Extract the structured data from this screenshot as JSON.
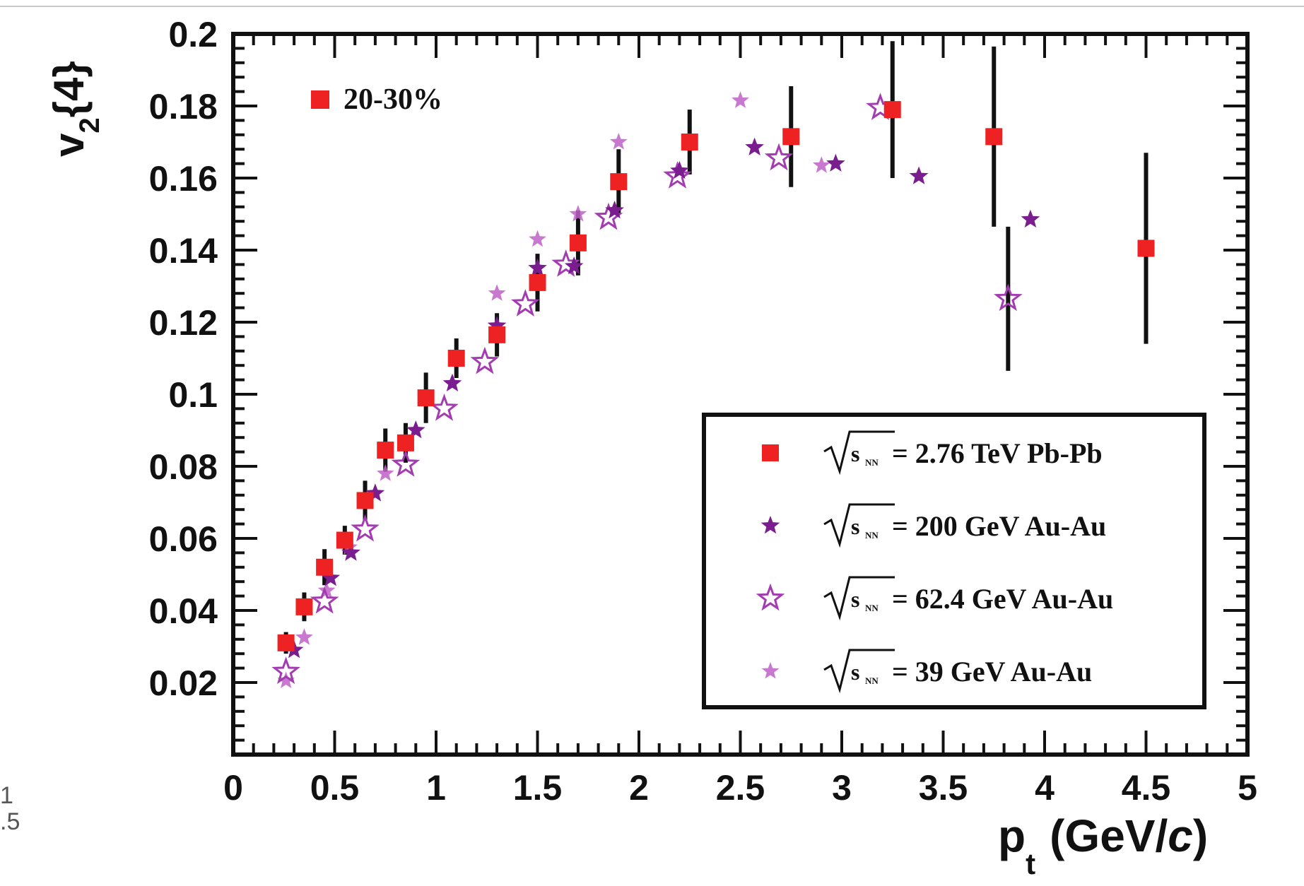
{
  "stray_text": {
    "line1": "1",
    "line2": ".5"
  },
  "chart_data": {
    "type": "scatter",
    "xlabel_main": "p",
    "xlabel_sub": "t",
    "xlabel_unit_open": "(GeV/",
    "xlabel_unit_italic": "c",
    "xlabel_unit_close": ")",
    "ylabel_main": "v",
    "ylabel_sub": "2",
    "ylabel_suffix": "{4}",
    "xlim": [
      0,
      5
    ],
    "ylim": [
      0,
      0.2
    ],
    "x_ticks": [
      "0",
      "0.5",
      "1",
      "1.5",
      "2",
      "2.5",
      "3",
      "3.5",
      "4",
      "4.5",
      "5"
    ],
    "y_ticks": [
      "0.02",
      "0.04",
      "0.06",
      "0.08",
      "0.1",
      "0.12",
      "0.14",
      "0.16",
      "0.18",
      "0.2"
    ],
    "annotation": "20-30%",
    "legend_position": "lower-right",
    "series": [
      {
        "name": "= 2.76 TeV Pb-Pb",
        "marker": "square",
        "color": "#ee2222",
        "points": [
          {
            "x": 0.26,
            "y": 0.031,
            "err": 0.003
          },
          {
            "x": 0.35,
            "y": 0.041,
            "err": 0.004
          },
          {
            "x": 0.45,
            "y": 0.052,
            "err": 0.005
          },
          {
            "x": 0.55,
            "y": 0.0595,
            "err": 0.004
          },
          {
            "x": 0.65,
            "y": 0.0705,
            "err": 0.0055
          },
          {
            "x": 0.75,
            "y": 0.0845,
            "err": 0.006
          },
          {
            "x": 0.85,
            "y": 0.0865,
            "err": 0.0055
          },
          {
            "x": 0.95,
            "y": 0.099,
            "err": 0.007
          },
          {
            "x": 1.1,
            "y": 0.11,
            "err": 0.0055
          },
          {
            "x": 1.3,
            "y": 0.1165,
            "err": 0.006
          },
          {
            "x": 1.5,
            "y": 0.131,
            "err": 0.008
          },
          {
            "x": 1.7,
            "y": 0.142,
            "err": 0.009
          },
          {
            "x": 1.9,
            "y": 0.159,
            "err": 0.009
          },
          {
            "x": 2.25,
            "y": 0.17,
            "err": 0.009
          },
          {
            "x": 2.75,
            "y": 0.1715,
            "err": 0.014
          },
          {
            "x": 3.25,
            "y": 0.179,
            "err": 0.019
          },
          {
            "x": 3.75,
            "y": 0.1715,
            "err": 0.025
          },
          {
            "x": 4.5,
            "y": 0.1405,
            "err": 0.0265
          }
        ]
      },
      {
        "name": "= 200 GeV Au-Au",
        "marker": "star-filled",
        "color": "#7a1d8f",
        "points": [
          {
            "x": 0.3,
            "y": 0.029
          },
          {
            "x": 0.48,
            "y": 0.049
          },
          {
            "x": 0.58,
            "y": 0.056
          },
          {
            "x": 0.7,
            "y": 0.0725
          },
          {
            "x": 0.9,
            "y": 0.09
          },
          {
            "x": 1.08,
            "y": 0.103
          },
          {
            "x": 1.3,
            "y": 0.119
          },
          {
            "x": 1.5,
            "y": 0.135
          },
          {
            "x": 1.68,
            "y": 0.1355
          },
          {
            "x": 1.88,
            "y": 0.151
          },
          {
            "x": 2.2,
            "y": 0.162
          },
          {
            "x": 2.57,
            "y": 0.1685
          },
          {
            "x": 2.97,
            "y": 0.164
          },
          {
            "x": 3.38,
            "y": 0.1605
          },
          {
            "x": 3.93,
            "y": 0.1485
          }
        ]
      },
      {
        "name": "= 62.4 GeV Au-Au",
        "marker": "star-open",
        "color": "#a33cb0",
        "points": [
          {
            "x": 0.26,
            "y": 0.023
          },
          {
            "x": 0.45,
            "y": 0.0425
          },
          {
            "x": 0.65,
            "y": 0.0625
          },
          {
            "x": 0.85,
            "y": 0.0805
          },
          {
            "x": 1.04,
            "y": 0.096
          },
          {
            "x": 1.24,
            "y": 0.109
          },
          {
            "x": 1.44,
            "y": 0.125
          },
          {
            "x": 1.64,
            "y": 0.136
          },
          {
            "x": 1.85,
            "y": 0.149
          },
          {
            "x": 2.19,
            "y": 0.1605
          },
          {
            "x": 2.69,
            "y": 0.1655
          },
          {
            "x": 3.19,
            "y": 0.1795
          },
          {
            "x": 3.82,
            "y": 0.1265,
            "err": 0.02
          }
        ]
      },
      {
        "name": "= 39 GeV Au-Au",
        "marker": "star-light",
        "color": "#c060c8",
        "points": [
          {
            "x": 0.26,
            "y": 0.0205
          },
          {
            "x": 0.35,
            "y": 0.0325
          },
          {
            "x": 0.46,
            "y": 0.0455
          },
          {
            "x": 0.57,
            "y": 0.0575
          },
          {
            "x": 0.75,
            "y": 0.078
          },
          {
            "x": 1.3,
            "y": 0.128
          },
          {
            "x": 1.5,
            "y": 0.143
          },
          {
            "x": 1.7,
            "y": 0.15
          },
          {
            "x": 1.9,
            "y": 0.17
          },
          {
            "x": 2.5,
            "y": 0.1815
          },
          {
            "x": 2.9,
            "y": 0.1635
          }
        ]
      }
    ]
  }
}
